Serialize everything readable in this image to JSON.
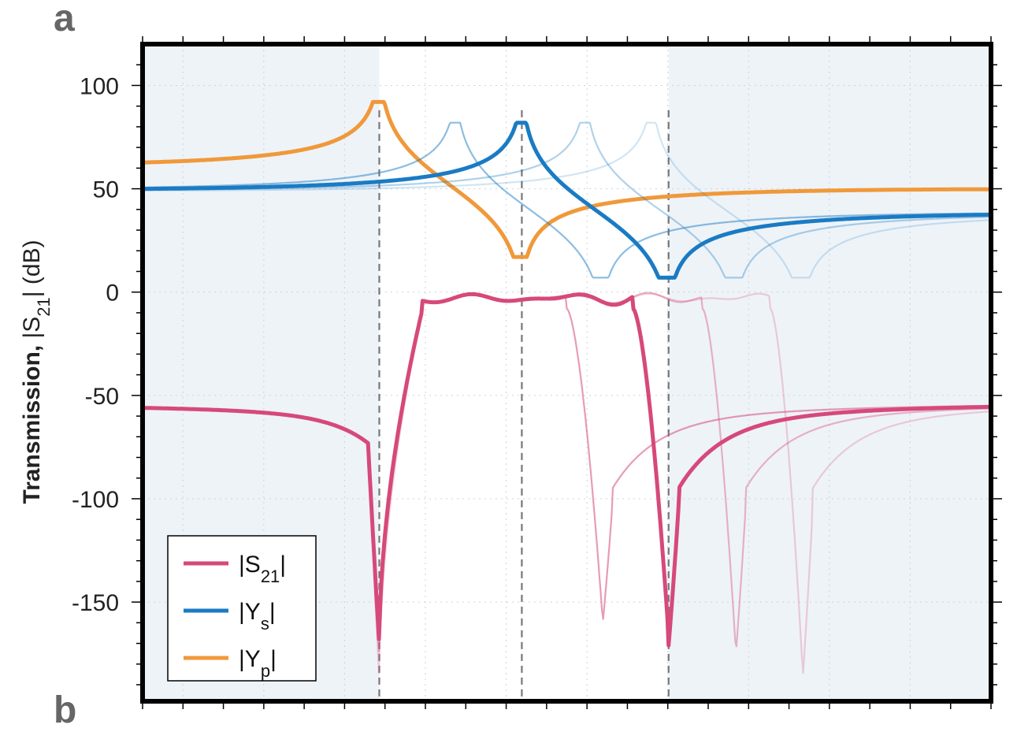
{
  "figure": {
    "panel_letter": "a",
    "next_panel_letter": "b"
  },
  "chart_data": {
    "type": "line",
    "xlabel": "",
    "ylabel": "Transmission, |S21| (dB)",
    "ylabel_parts": {
      "bold": "Transmission,",
      "pre": "|S",
      "sub": "21",
      "post": "| (dB)"
    },
    "ylim": [
      -198,
      120
    ],
    "xlim": [
      0,
      1
    ],
    "yticks": [
      100,
      50,
      0,
      -50,
      -100,
      -150
    ],
    "ytick_labels": [
      "100",
      "50",
      "0",
      "-50",
      "-100",
      "-150"
    ],
    "x_tick_count": 22,
    "grid": true,
    "legend_position": "bottom-left",
    "shaded_bands": [
      [
        0,
        0.279
      ],
      [
        0.62,
        1
      ]
    ],
    "vertical_guides": [
      0.279,
      0.447,
      0.62
    ],
    "colors": {
      "s21": "#d6497a",
      "ys": "#1a7bc4",
      "yp": "#f0993a"
    },
    "legend": [
      {
        "key": "s21",
        "label_pre": "|S",
        "label_sub": "21",
        "label_post": "|"
      },
      {
        "key": "ys",
        "label_pre": "|Y",
        "label_sub": "s",
        "label_post": "|"
      },
      {
        "key": "yp",
        "label_pre": "|Y",
        "label_sub": "p",
        "label_post": "|"
      }
    ],
    "series": [
      {
        "key": "yp",
        "emphasis": true,
        "resonance": 0.279,
        "antiresonance": 0.447,
        "peak": 92,
        "dip": 17
      },
      {
        "key": "ys",
        "emphasis": false,
        "opacity": 0.5,
        "resonance": 0.369,
        "antiresonance": 0.542,
        "peak": 82,
        "dip": 7
      },
      {
        "key": "ys",
        "emphasis": false,
        "opacity": 0.35,
        "resonance": 0.522,
        "antiresonance": 0.699,
        "peak": 82,
        "dip": 7
      },
      {
        "key": "ys",
        "emphasis": false,
        "opacity": 0.2,
        "resonance": 0.6,
        "antiresonance": 0.778,
        "peak": 82,
        "dip": 7
      },
      {
        "key": "ys",
        "emphasis": true,
        "resonance": 0.447,
        "antiresonance": 0.62,
        "peak": 82,
        "dip": 7
      },
      {
        "key": "s21",
        "emphasis": false,
        "opacity": 0.55,
        "lower_notch": 0.279,
        "upper_notch": 0.542,
        "notch_depth": -162,
        "pass_end": 0.5
      },
      {
        "key": "s21",
        "emphasis": false,
        "opacity": 0.4,
        "lower_notch": 0.279,
        "upper_notch": 0.699,
        "notch_depth": -177,
        "pass_end": 0.66
      },
      {
        "key": "s21",
        "emphasis": false,
        "opacity": 0.25,
        "lower_notch": 0.279,
        "upper_notch": 0.778,
        "notch_depth": -188,
        "pass_end": 0.74
      },
      {
        "key": "s21",
        "emphasis": true,
        "lower_notch": 0.279,
        "upper_notch": 0.62,
        "notch_depth": -171,
        "pass_end": 0.578
      }
    ]
  }
}
